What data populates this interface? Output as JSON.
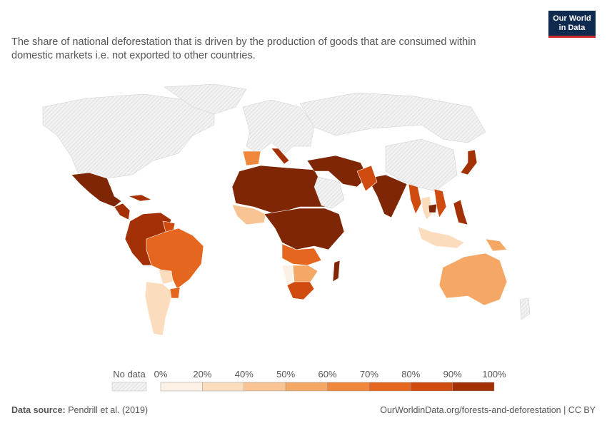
{
  "logo": {
    "line1": "Our World",
    "line2": "in Data"
  },
  "subtitle": "The share of national deforestation that is driven by the production of goods that are consumed within domestic markets i.e. not exported to other countries.",
  "legend": {
    "no_data_label": "No data",
    "ticks": [
      "0%",
      "20%",
      "40%",
      "50%",
      "60%",
      "70%",
      "80%",
      "90%",
      "100%"
    ],
    "colors": [
      "#fdf1e6",
      "#fbdcbd",
      "#f8c493",
      "#f5a865",
      "#f0883c",
      "#e5671f",
      "#cf4b10",
      "#a43106",
      "#7f2704"
    ],
    "no_data_color": "#eeeeee"
  },
  "footer": {
    "source_label": "Data source:",
    "source_text": "Pendrill et al. (2019)",
    "credit": "OurWorldinData.org/forests-and-deforestation | CC BY"
  },
  "regions": [
    {
      "name": "Canada/USA/Greenland",
      "value": null
    },
    {
      "name": "Mexico",
      "value": 100
    },
    {
      "name": "Central America",
      "value": 90
    },
    {
      "name": "Cuba",
      "value": 95
    },
    {
      "name": "Colombia/Venezuela/Peru/Ecuador/Bolivia",
      "value": 98
    },
    {
      "name": "Guyana",
      "value": 85
    },
    {
      "name": "Brazil",
      "value": 75
    },
    {
      "name": "Paraguay",
      "value": 20
    },
    {
      "name": "Argentina/Chile",
      "value": 20
    },
    {
      "name": "Uruguay",
      "value": 70
    },
    {
      "name": "Europe",
      "value": null
    },
    {
      "name": "Spain",
      "value": 65
    },
    {
      "name": "Italy",
      "value": 90
    },
    {
      "name": "Russia/North Asia",
      "value": null
    },
    {
      "name": "North Africa & Sahel",
      "value": 100
    },
    {
      "name": "West Africa",
      "value": 45
    },
    {
      "name": "Central Africa",
      "value": 100
    },
    {
      "name": "Angola/Zambia region",
      "value": 75
    },
    {
      "name": "Namibia",
      "value": 15
    },
    {
      "name": "South Africa",
      "value": 80
    },
    {
      "name": "Botswana/Zimbabwe",
      "value": 55
    },
    {
      "name": "Madagascar",
      "value": 100
    },
    {
      "name": "Middle East",
      "value": 100
    },
    {
      "name": "Saudi Arabia",
      "value": null
    },
    {
      "name": "India",
      "value": 100
    },
    {
      "name": "Pakistan",
      "value": 80
    },
    {
      "name": "China/Mongolia",
      "value": null
    },
    {
      "name": "Myanmar",
      "value": 85
    },
    {
      "name": "Thailand",
      "value": 25
    },
    {
      "name": "Cambodia",
      "value": 100
    },
    {
      "name": "Vietnam",
      "value": 80
    },
    {
      "name": "Philippines",
      "value": 90
    },
    {
      "name": "Japan",
      "value": 90
    },
    {
      "name": "Indonesia",
      "value": 20
    },
    {
      "name": "Papua New Guinea",
      "value": 55
    },
    {
      "name": "Australia",
      "value": 55
    },
    {
      "name": "New Zealand",
      "value": null
    }
  ]
}
